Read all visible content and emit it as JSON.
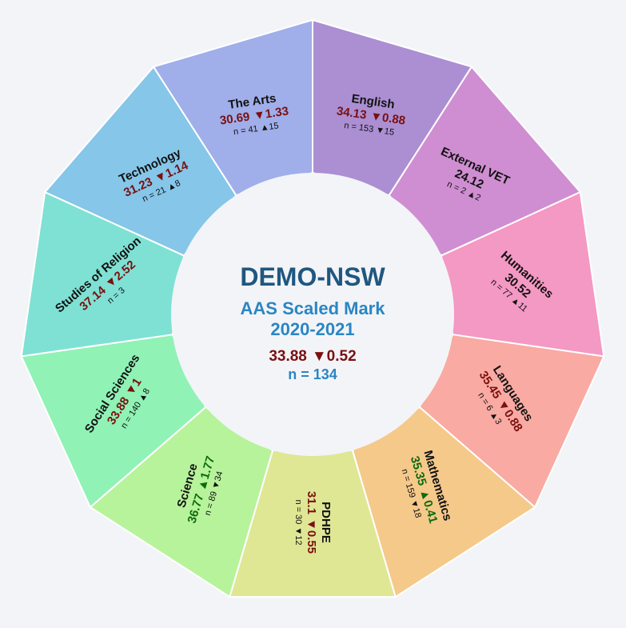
{
  "chart_data": {
    "type": "pie",
    "center": {
      "school": "DEMO-NSW",
      "metric": "AAS Scaled Mark",
      "years": "2020-2021",
      "value": "33.88",
      "change": "▼0.52",
      "count": "n = 134"
    },
    "colors": {
      "title": "#1f5780",
      "subtitle": "#2a86c3",
      "down": "#7a1010",
      "up": "#0f6a0f",
      "neutral": "#111111",
      "inner_fill": "#f3f4f8"
    },
    "segments": [
      {
        "name": "English",
        "value": "34.13",
        "change": "▼0.88",
        "trend": "down",
        "n_label": "n = 153 ▼15",
        "color": "#ab8fd2"
      },
      {
        "name": "External VET",
        "value": "24.12",
        "change": "",
        "trend": "neutral",
        "n_label": "n = 2 ▲2",
        "color": "#d08ed2"
      },
      {
        "name": "Humanities",
        "value": "30.52",
        "change": "",
        "trend": "neutral",
        "n_label": "n = 77 ▲11",
        "color": "#f498c4"
      },
      {
        "name": "Languages",
        "value": "35.45",
        "change": "▼0.88",
        "trend": "down",
        "n_label": "n = 6 ▲3",
        "color": "#f9aaa2"
      },
      {
        "name": "Mathematics",
        "value": "35.35",
        "change": "▲0.41",
        "trend": "up",
        "n_label": "n = 159 ▼18",
        "color": "#f5c98a"
      },
      {
        "name": "PDHPE",
        "value": "31.1",
        "change": "▼0.55",
        "trend": "down",
        "n_label": "n = 30 ▼12",
        "color": "#dfe795"
      },
      {
        "name": "Science",
        "value": "36.77",
        "change": "▲1.77",
        "trend": "up",
        "n_label": "n = 89 ▼34",
        "color": "#b7f39b"
      },
      {
        "name": "Social Sciences",
        "value": "33.88",
        "change": "▼1",
        "trend": "down",
        "n_label": "n = 140 ▲8",
        "color": "#90f2b5"
      },
      {
        "name": "Studies of Religion",
        "value": "37.14",
        "change": "▼2.52",
        "trend": "down",
        "n_label": "n = 3",
        "color": "#7fe1d4"
      },
      {
        "name": "Technology",
        "value": "31.23",
        "change": "▼1.14",
        "trend": "down",
        "n_label": "n = 21 ▲8",
        "color": "#85c6e9"
      },
      {
        "name": "The Arts",
        "value": "30.69",
        "change": "▼1.33",
        "trend": "down",
        "n_label": "n = 41 ▲15",
        "color": "#a0aeea"
      }
    ]
  }
}
